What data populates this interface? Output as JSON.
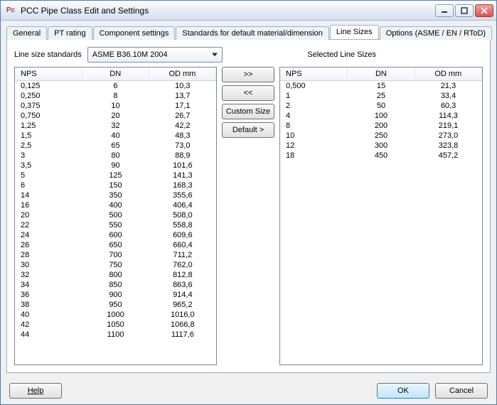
{
  "window": {
    "title": "PCC Pipe Class Edit and Settings",
    "icon_label": "Pc"
  },
  "tabs": [
    {
      "label": "General",
      "active": false
    },
    {
      "label": "PT rating",
      "active": false
    },
    {
      "label": "Component settings",
      "active": false
    },
    {
      "label": "Standards for default material/dimension",
      "active": false
    },
    {
      "label": "Line Sizes",
      "active": true
    },
    {
      "label": "Options (ASME / EN / RToD)",
      "active": false
    }
  ],
  "line_size_standards_label": "Line size standards",
  "combo_value": "ASME B36.10M 2004",
  "selected_label": "Selected Line Sizes",
  "columns": {
    "nps": "NPS",
    "dn": "DN",
    "od": "OD mm"
  },
  "buttons": {
    "move_right": ">>",
    "move_left": "<<",
    "custom": "Custom Size",
    "default": "Default >"
  },
  "footer": {
    "help": "Help",
    "ok": "OK",
    "cancel": "Cancel"
  },
  "left_rows": [
    {
      "nps": "0,125",
      "dn": "6",
      "od": "10,3"
    },
    {
      "nps": "0,250",
      "dn": "8",
      "od": "13,7"
    },
    {
      "nps": "0,375",
      "dn": "10",
      "od": "17,1"
    },
    {
      "nps": "0,750",
      "dn": "20",
      "od": "26,7"
    },
    {
      "nps": "1,25",
      "dn": "32",
      "od": "42,2"
    },
    {
      "nps": "1,5",
      "dn": "40",
      "od": "48,3"
    },
    {
      "nps": "2,5",
      "dn": "65",
      "od": "73,0"
    },
    {
      "nps": "3",
      "dn": "80",
      "od": "88,9"
    },
    {
      "nps": "3,5",
      "dn": "90",
      "od": "101,6"
    },
    {
      "nps": "5",
      "dn": "125",
      "od": "141,3"
    },
    {
      "nps": "6",
      "dn": "150",
      "od": "168,3"
    },
    {
      "nps": "14",
      "dn": "350",
      "od": "355,6"
    },
    {
      "nps": "16",
      "dn": "400",
      "od": "406,4"
    },
    {
      "nps": "20",
      "dn": "500",
      "od": "508,0"
    },
    {
      "nps": "22",
      "dn": "550",
      "od": "558,8"
    },
    {
      "nps": "24",
      "dn": "600",
      "od": "609,6"
    },
    {
      "nps": "26",
      "dn": "650",
      "od": "660,4"
    },
    {
      "nps": "28",
      "dn": "700",
      "od": "711,2"
    },
    {
      "nps": "30",
      "dn": "750",
      "od": "762,0"
    },
    {
      "nps": "32",
      "dn": "800",
      "od": "812,8"
    },
    {
      "nps": "34",
      "dn": "850",
      "od": "863,6"
    },
    {
      "nps": "36",
      "dn": "900",
      "od": "914,4"
    },
    {
      "nps": "38",
      "dn": "950",
      "od": "965,2"
    },
    {
      "nps": "40",
      "dn": "1000",
      "od": "1016,0"
    },
    {
      "nps": "42",
      "dn": "1050",
      "od": "1066,8"
    },
    {
      "nps": "44",
      "dn": "1100",
      "od": "1117,6"
    }
  ],
  "right_rows": [
    {
      "nps": "0,500",
      "dn": "15",
      "od": "21,3"
    },
    {
      "nps": "1",
      "dn": "25",
      "od": "33,4"
    },
    {
      "nps": "2",
      "dn": "50",
      "od": "60,3"
    },
    {
      "nps": "4",
      "dn": "100",
      "od": "114,3"
    },
    {
      "nps": "8",
      "dn": "200",
      "od": "219,1"
    },
    {
      "nps": "10",
      "dn": "250",
      "od": "273,0"
    },
    {
      "nps": "12",
      "dn": "300",
      "od": "323,8"
    },
    {
      "nps": "18",
      "dn": "450",
      "od": "457,2"
    }
  ]
}
